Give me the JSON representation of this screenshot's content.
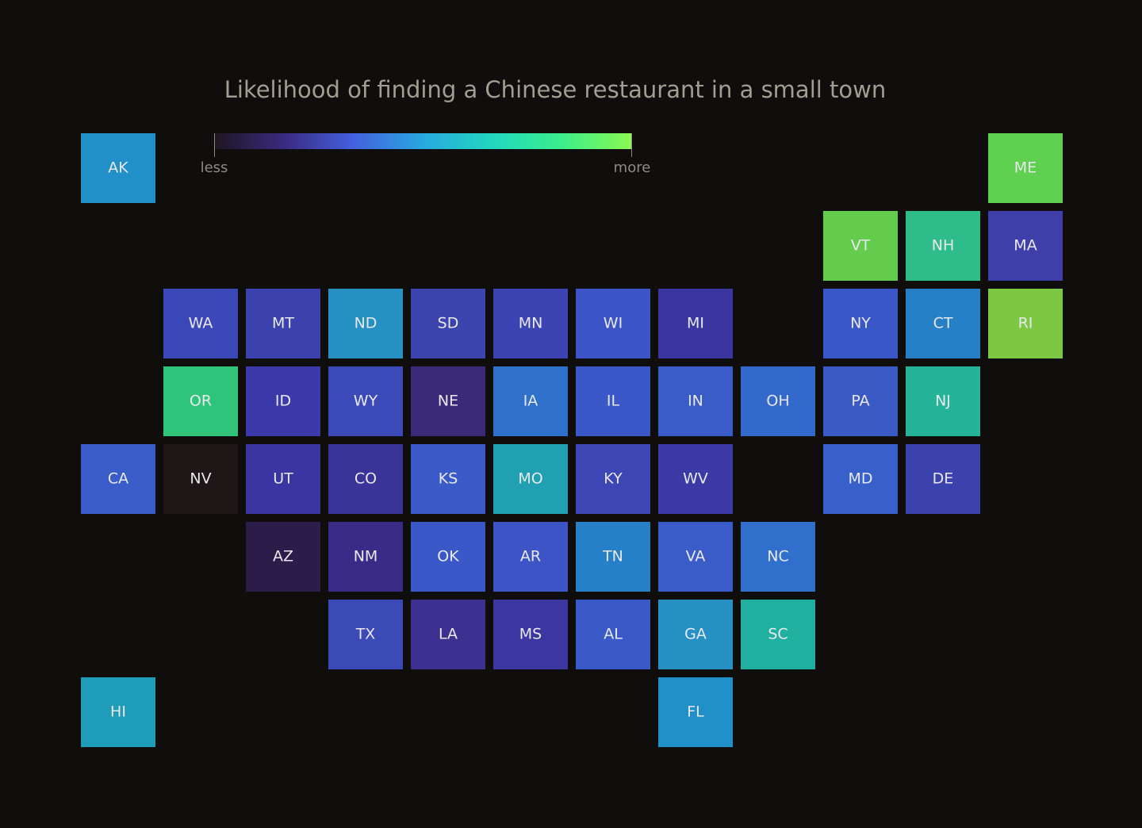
{
  "title": "Likelihood of finding a Chinese restaurant in a small town",
  "legend": {
    "low": "less",
    "high": "more",
    "colors": [
      "#1e1620",
      "#3a2a80",
      "#4460e0",
      "#28a8e0",
      "#20d8c0",
      "#3cee8a",
      "#8cf850"
    ]
  },
  "tiles": [
    {
      "label": "AK",
      "color": "#2190c8"
    },
    {
      "label": "ME",
      "color": "#5fcf50"
    },
    {
      "label": "VT",
      "color": "#64cc4c"
    },
    {
      "label": "NH",
      "color": "#2dbc8a"
    },
    {
      "label": "MA",
      "color": "#3e3fa8"
    },
    {
      "label": "WA",
      "color": "#3d48b8"
    },
    {
      "label": "MT",
      "color": "#3c42ad"
    },
    {
      "label": "ND",
      "color": "#2490c4"
    },
    {
      "label": "SD",
      "color": "#3c44ad"
    },
    {
      "label": "MN",
      "color": "#3c44b4"
    },
    {
      "label": "WI",
      "color": "#3b55c8"
    },
    {
      "label": "MI",
      "color": "#3b35a0"
    },
    {
      "label": "NY",
      "color": "#3a57c8"
    },
    {
      "label": "CT",
      "color": "#2580c8"
    },
    {
      "label": "RI",
      "color": "#7cc843"
    },
    {
      "label": "OR",
      "color": "#2ec47a"
    },
    {
      "label": "ID",
      "color": "#3c3aaa"
    },
    {
      "label": "WY",
      "color": "#3c4ab9"
    },
    {
      "label": "NE",
      "color": "#3a2a78"
    },
    {
      "label": "IA",
      "color": "#2e70cc"
    },
    {
      "label": "IL",
      "color": "#3a58c8"
    },
    {
      "label": "IN",
      "color": "#3a5cc8"
    },
    {
      "label": "OH",
      "color": "#3368cc"
    },
    {
      "label": "PA",
      "color": "#3a5ac6"
    },
    {
      "label": "NJ",
      "color": "#24b49a"
    },
    {
      "label": "CA",
      "color": "#3a5cc8"
    },
    {
      "label": "NV",
      "color": "#1f1618"
    },
    {
      "label": "UT",
      "color": "#3a35a0"
    },
    {
      "label": "CO",
      "color": "#3a3498"
    },
    {
      "label": "KS",
      "color": "#3a5ac8"
    },
    {
      "label": "MO",
      "color": "#20a0b0"
    },
    {
      "label": "KY",
      "color": "#3c46b5"
    },
    {
      "label": "WV",
      "color": "#3c3aa6"
    },
    {
      "label": "MD",
      "color": "#3760cb"
    },
    {
      "label": "DE",
      "color": "#3c42ad"
    },
    {
      "label": "AZ",
      "color": "#2c1c4a"
    },
    {
      "label": "NM",
      "color": "#3a2b88"
    },
    {
      "label": "OK",
      "color": "#3a58c8"
    },
    {
      "label": "AR",
      "color": "#3c54c6"
    },
    {
      "label": "TN",
      "color": "#2580c8"
    },
    {
      "label": "VA",
      "color": "#3a5cc8"
    },
    {
      "label": "NC",
      "color": "#3070cc"
    },
    {
      "label": "TX",
      "color": "#3c4ab8"
    },
    {
      "label": "LA",
      "color": "#3c3090"
    },
    {
      "label": "MS",
      "color": "#3c36a0"
    },
    {
      "label": "AL",
      "color": "#3a5ac8"
    },
    {
      "label": "GA",
      "color": "#2490c4"
    },
    {
      "label": "SC",
      "color": "#20b0a0"
    },
    {
      "label": "HI",
      "color": "#1f9cb8"
    },
    {
      "label": "FL",
      "color": "#2290c8"
    }
  ]
}
